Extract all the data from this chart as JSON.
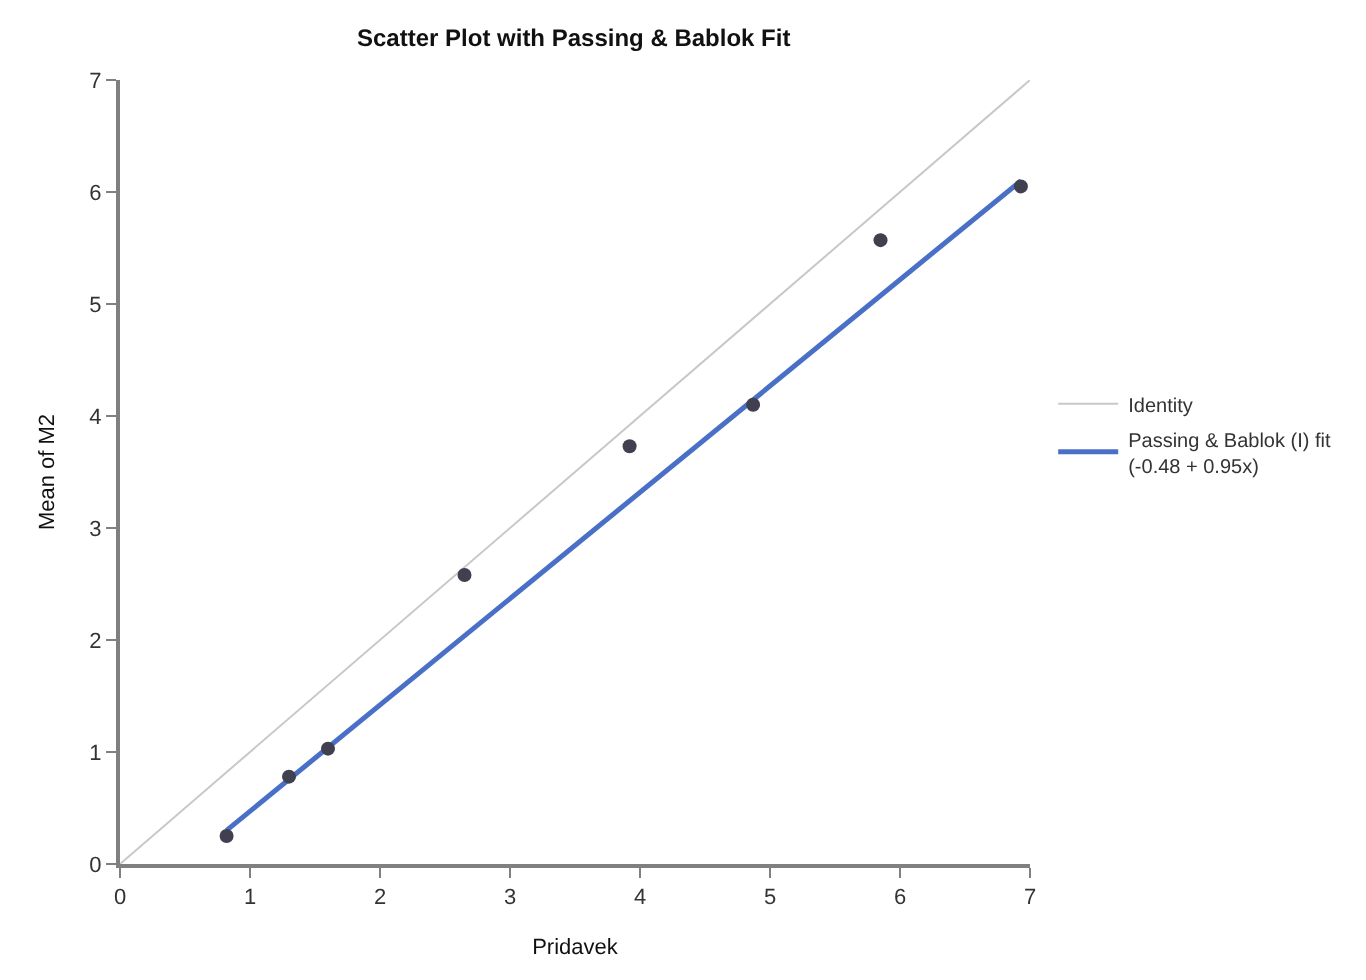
{
  "chart_data": {
    "type": "scatter",
    "title": "Scatter Plot with Passing & Bablok Fit",
    "xlabel": "Pridavek",
    "ylabel": "Mean of M2",
    "xlim": [
      0,
      7
    ],
    "xticks": [
      0,
      1,
      2,
      3,
      4,
      5,
      6,
      7
    ],
    "ylim": [
      0,
      7
    ],
    "yticks": [
      0,
      1,
      2,
      3,
      4,
      5,
      6,
      7
    ],
    "legend": "right",
    "series": [
      {
        "color": "#404050",
        "marker": "circle",
        "x": [
          0.82,
          1.3,
          1.6,
          2.65,
          3.92,
          4.87,
          5.85,
          6.93
        ],
        "values": [
          0.25,
          0.78,
          1.03,
          2.58,
          3.73,
          4.1,
          5.57,
          6.05
        ]
      },
      {
        "type": "line",
        "name": "Identity",
        "color": "#c8c8c8",
        "marker": "none",
        "x": [
          0,
          7
        ],
        "values": [
          0,
          7
        ]
      },
      {
        "type": "line",
        "name": "Passing & Bablok (I) fit (-0.48 + 0.95x)",
        "color": "#4a6fc7",
        "marker": "none",
        "x": [
          0.82,
          6.93
        ],
        "values": [
          0.3,
          6.1
        ]
      }
    ]
  }
}
